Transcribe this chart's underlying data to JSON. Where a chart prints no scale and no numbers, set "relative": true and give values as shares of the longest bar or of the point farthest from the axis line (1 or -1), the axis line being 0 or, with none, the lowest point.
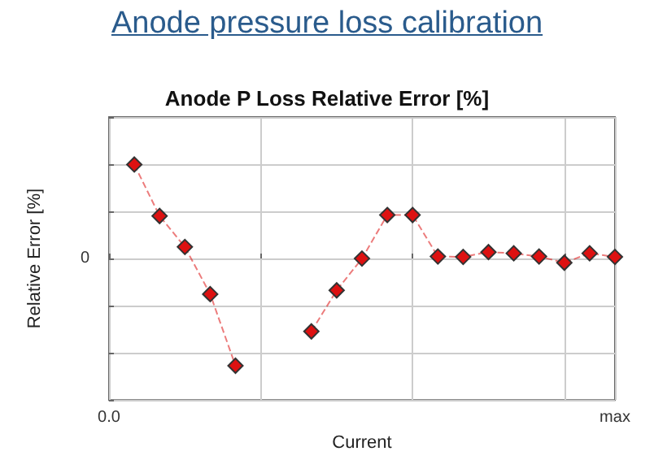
{
  "chart_data": {
    "type": "line",
    "title": "Anode pressure loss calibration",
    "subtitle": "Anode P Loss Relative Error [%]",
    "xlabel": "Current",
    "ylabel": "Relative Error [%]",
    "relative": true,
    "annotations": [
      "0"
    ],
    "categories": [
      "0.0",
      null,
      null,
      null,
      null,
      null,
      null,
      null,
      null,
      null,
      null,
      null,
      null,
      null,
      null,
      null,
      null,
      null,
      null,
      null,
      "max"
    ],
    "series": [
      {
        "color": "#dd1111",
        "values": [
          null,
          0.877,
          0.397,
          0.108,
          -0.332,
          -1,
          null,
          null,
          -0.68,
          -0.297,
          0,
          0.406,
          0.406,
          0.019,
          0.015,
          0.06,
          0.049,
          0.019,
          -0.039,
          0.049,
          0.015
        ]
      }
    ],
    "grid": true,
    "marker": "diamond",
    "line_style": "dashed"
  }
}
